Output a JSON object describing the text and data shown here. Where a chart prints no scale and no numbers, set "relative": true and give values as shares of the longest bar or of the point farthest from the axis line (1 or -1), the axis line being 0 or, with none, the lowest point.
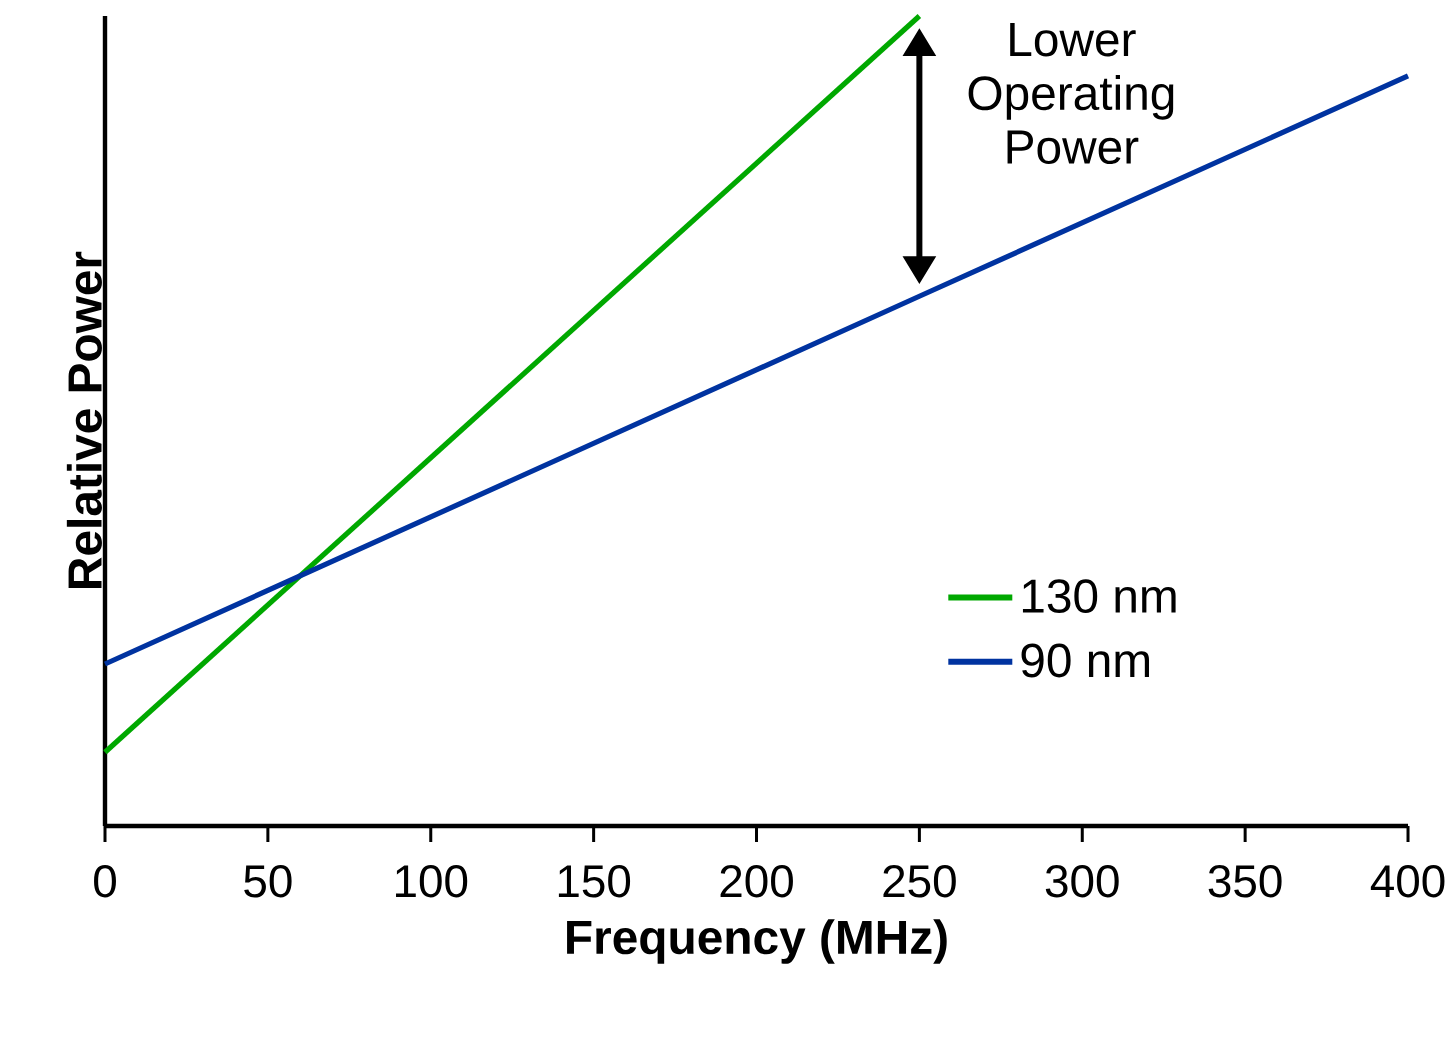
{
  "chart_data": {
    "type": "line",
    "relative": true,
    "xlabel": "Frequency (MHz)",
    "ylabel": "Relative Power",
    "xlim": [
      0,
      400
    ],
    "xticks": [
      0,
      50,
      100,
      150,
      200,
      250,
      300,
      350,
      400
    ],
    "legend": "right",
    "annotations": [
      "Lower Operating Power"
    ],
    "series": [
      {
        "name": "130 nm",
        "color": "#00a800",
        "x": [
          0,
          250
        ],
        "values": [
          0.091,
          1
        ]
      },
      {
        "name": "90 nm",
        "color": "#0033a0",
        "x": [
          0,
          250,
          400
        ],
        "values": [
          0.2,
          0.654,
          0.926
        ]
      }
    ]
  }
}
